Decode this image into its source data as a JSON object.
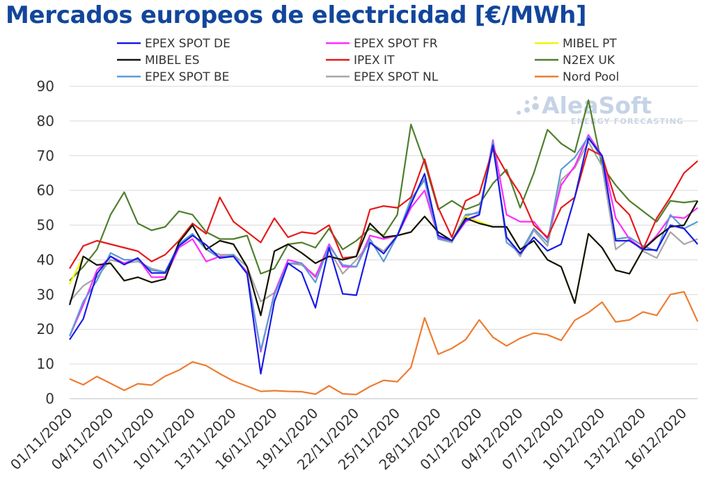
{
  "title": "Mercados europeos de electricidad [€/MWh]",
  "watermark": {
    "brand": "AleaSoft",
    "tagline": "ENERGY FORECASTING",
    "color": "#c6d3e6"
  },
  "chart_data": {
    "type": "line",
    "title": "Mercados europeos de electricidad [€/MWh]",
    "xlabel": "",
    "ylabel": "",
    "ylim": [
      0,
      90
    ],
    "yticks": [
      0,
      10,
      20,
      30,
      40,
      50,
      60,
      70,
      80,
      90
    ],
    "grid": "horizontal",
    "legend_position": "top",
    "x": [
      "01/11/2020",
      "02/11/2020",
      "03/11/2020",
      "04/11/2020",
      "05/11/2020",
      "06/11/2020",
      "07/11/2020",
      "08/11/2020",
      "09/11/2020",
      "10/11/2020",
      "11/11/2020",
      "12/11/2020",
      "13/11/2020",
      "14/11/2020",
      "15/11/2020",
      "16/11/2020",
      "17/11/2020",
      "18/11/2020",
      "19/11/2020",
      "20/11/2020",
      "21/11/2020",
      "22/11/2020",
      "23/11/2020",
      "24/11/2020",
      "25/11/2020",
      "26/11/2020",
      "27/11/2020",
      "28/11/2020",
      "29/11/2020",
      "30/11/2020",
      "01/12/2020",
      "02/12/2020",
      "03/12/2020",
      "04/12/2020",
      "05/12/2020",
      "06/12/2020",
      "07/12/2020",
      "08/12/2020",
      "09/12/2020",
      "10/12/2020",
      "11/12/2020",
      "12/12/2020",
      "13/12/2020",
      "14/12/2020",
      "15/12/2020",
      "16/12/2020",
      "17/12/2020"
    ],
    "x_tick_labels": [
      "01/11/2020",
      "04/11/2020",
      "07/11/2020",
      "10/11/2020",
      "13/11/2020",
      "16/11/2020",
      "19/11/2020",
      "22/11/2020",
      "25/11/2020",
      "28/11/2020",
      "01/12/2020",
      "04/12/2020",
      "07/12/2020",
      "10/12/2020",
      "13/12/2020",
      "16/12/2020"
    ],
    "series": [
      {
        "name": "EPEX SPOT DE",
        "color": "#1a1ae6",
        "values": [
          17.0,
          23.0,
          36.0,
          41.0,
          38.6,
          40.5,
          36.2,
          36.2,
          44.0,
          47.0,
          44.3,
          40.5,
          41.0,
          36.0,
          7.2,
          28.0,
          39.0,
          36.3,
          26.2,
          43.5,
          30.2,
          29.8,
          45.0,
          41.8,
          47.0,
          56.0,
          64.8,
          47.0,
          45.5,
          51.5,
          53.0,
          73.0,
          46.5,
          41.8,
          46.5,
          42.6,
          44.5,
          58.0,
          75.0,
          70.0,
          45.5,
          45.5,
          43.0,
          42.8,
          50.0,
          49.0,
          44.5
        ]
      },
      {
        "name": "EPEX SPOT FR",
        "color": "#ff2bff",
        "values": [
          18.0,
          27.0,
          37.0,
          41.0,
          39.0,
          40.5,
          35.0,
          35.0,
          43.5,
          46.0,
          39.5,
          41.0,
          41.0,
          36.5,
          13.5,
          30.5,
          40.0,
          39.0,
          35.0,
          44.5,
          38.0,
          38.0,
          47.0,
          46.0,
          47.0,
          55.0,
          60.0,
          46.5,
          45.5,
          51.0,
          53.0,
          74.5,
          53.0,
          51.0,
          51.0,
          46.0,
          61.5,
          67.0,
          76.0,
          70.0,
          52.0,
          46.0,
          43.0,
          47.0,
          52.5,
          52.0,
          55.0
        ]
      },
      {
        "name": "MIBEL PT",
        "color": "#f5f500",
        "values": [
          33.0,
          41.0,
          38.5,
          39.0,
          34.0,
          35.0,
          33.5,
          34.5,
          45.0,
          50.0,
          43.0,
          45.5,
          44.5,
          38.0,
          24.0,
          42.5,
          44.5,
          42.0,
          39.0,
          41.0,
          40.0,
          41.0,
          50.5,
          46.5,
          47.0,
          48.0,
          52.5,
          48.0,
          45.5,
          52.5,
          51.0,
          49.5,
          49.5,
          43.0,
          45.5,
          40.0,
          38.0,
          27.5,
          47.5,
          43.5,
          37.0,
          36.0,
          43.0,
          46.5,
          49.5,
          50.0,
          57.0
        ]
      },
      {
        "name": "MIBEL ES",
        "color": "#111111",
        "values": [
          27.0,
          41.0,
          38.5,
          39.0,
          34.0,
          35.0,
          33.5,
          34.5,
          45.0,
          50.0,
          43.0,
          45.5,
          44.5,
          38.0,
          24.0,
          42.5,
          44.5,
          42.0,
          39.0,
          41.0,
          40.0,
          41.0,
          50.5,
          46.5,
          47.0,
          48.0,
          52.5,
          48.0,
          45.5,
          52.0,
          50.5,
          49.5,
          49.5,
          43.0,
          45.5,
          40.0,
          38.0,
          27.5,
          47.5,
          43.5,
          37.0,
          36.0,
          43.0,
          46.5,
          49.5,
          50.0,
          57.0
        ]
      },
      {
        "name": "IPEX IT",
        "color": "#e61a1a",
        "values": [
          37.5,
          44.0,
          45.5,
          44.5,
          43.5,
          42.5,
          39.5,
          41.5,
          45.5,
          50.5,
          47.5,
          58.0,
          51.0,
          48.0,
          45.0,
          52.0,
          46.5,
          48.0,
          47.5,
          50.0,
          40.5,
          41.0,
          54.5,
          55.5,
          55.0,
          58.0,
          69.0,
          55.0,
          46.5,
          57.0,
          59.0,
          72.0,
          65.0,
          59.0,
          50.0,
          46.5,
          55.0,
          58.0,
          72.0,
          70.0,
          57.0,
          53.0,
          43.0,
          52.0,
          58.0,
          65.0,
          68.5
        ]
      },
      {
        "name": "N2EX UK",
        "color": "#4f7f2e",
        "values": [
          34.0,
          38.0,
          43.0,
          53.0,
          59.5,
          50.5,
          48.5,
          49.5,
          54.0,
          53.0,
          48.0,
          46.0,
          46.0,
          47.0,
          36.0,
          37.5,
          44.5,
          45.0,
          43.5,
          49.0,
          43.0,
          45.5,
          49.0,
          47.0,
          53.0,
          79.0,
          68.0,
          54.5,
          57.0,
          54.5,
          56.0,
          62.0,
          66.0,
          55.0,
          65.0,
          77.5,
          73.5,
          71.0,
          86.0,
          67.0,
          61.5,
          57.0,
          54.0,
          51.0,
          57.0,
          56.5,
          57.0
        ]
      },
      {
        "name": "EPEX SPOT BE",
        "color": "#5b9bd5",
        "values": [
          18.0,
          28.0,
          34.0,
          42.0,
          40.0,
          40.0,
          37.0,
          36.5,
          44.5,
          47.5,
          43.0,
          40.5,
          41.5,
          36.0,
          14.0,
          30.0,
          39.0,
          39.0,
          33.5,
          44.0,
          38.5,
          38.0,
          46.0,
          39.5,
          47.0,
          57.5,
          63.0,
          46.0,
          45.5,
          53.0,
          53.5,
          74.0,
          45.0,
          42.0,
          49.0,
          45.0,
          66.0,
          69.5,
          75.5,
          69.0,
          46.0,
          46.5,
          44.0,
          42.5,
          53.0,
          49.0,
          51.0
        ]
      },
      {
        "name": "EPEX SPOT NL",
        "color": "#a6a6a6",
        "values": [
          28.0,
          32.5,
          35.0,
          40.0,
          39.0,
          39.5,
          37.5,
          36.5,
          44.5,
          47.5,
          43.0,
          41.5,
          41.5,
          38.0,
          28.0,
          30.5,
          39.0,
          38.5,
          35.5,
          43.0,
          36.0,
          40.0,
          45.0,
          42.5,
          47.0,
          57.0,
          63.5,
          46.0,
          45.0,
          52.5,
          54.0,
          73.0,
          46.5,
          41.0,
          48.5,
          44.0,
          63.0,
          66.5,
          74.0,
          67.0,
          43.0,
          46.0,
          42.5,
          40.5,
          48.0,
          44.5,
          46.0
        ]
      },
      {
        "name": "Nord Pool",
        "color": "#ed7d31",
        "values": [
          5.7,
          4.0,
          6.4,
          4.4,
          2.4,
          4.3,
          3.9,
          6.5,
          8.2,
          10.6,
          9.5,
          7.2,
          5.1,
          3.6,
          2.1,
          2.3,
          2.1,
          2.0,
          1.3,
          3.7,
          1.4,
          1.2,
          3.5,
          5.3,
          4.9,
          9.0,
          23.3,
          12.8,
          14.5,
          17.0,
          22.7,
          17.7,
          15.2,
          17.4,
          18.9,
          18.4,
          16.8,
          22.6,
          24.8,
          27.8,
          22.1,
          22.7,
          25.0,
          24.0,
          30.0,
          30.8,
          22.2
        ]
      }
    ]
  }
}
